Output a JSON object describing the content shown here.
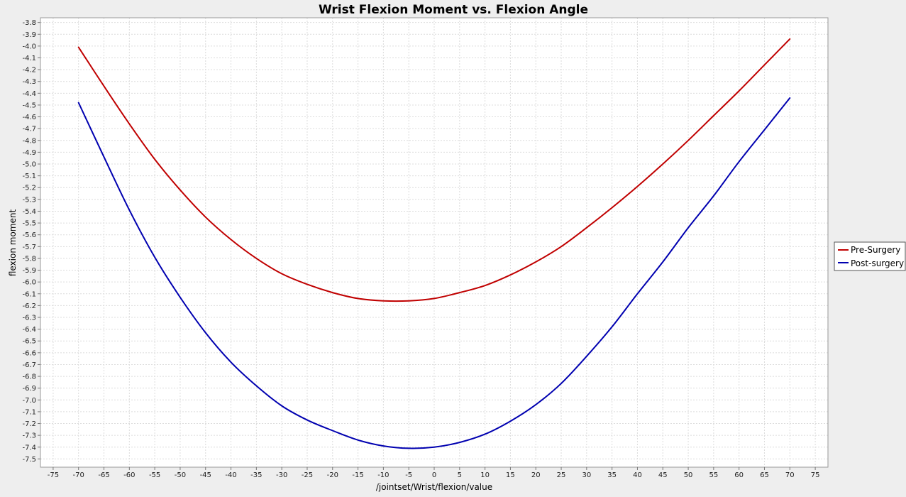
{
  "chart_data": {
    "type": "line",
    "title": "Wrist Flexion Moment vs. Flexion Angle",
    "xlabel": "/jointset/Wrist/flexion/value",
    "ylabel": "flexion moment",
    "xlim": [
      -77.5,
      77.5
    ],
    "ylim": [
      -7.57,
      -3.76
    ],
    "x_ticks": [
      -75,
      -70,
      -65,
      -60,
      -55,
      -50,
      -45,
      -40,
      -35,
      -30,
      -25,
      -20,
      -15,
      -10,
      -5,
      0,
      5,
      10,
      15,
      20,
      25,
      30,
      35,
      40,
      45,
      50,
      55,
      60,
      65,
      70,
      75
    ],
    "x_tick_labels": [
      "-75",
      "-70",
      "-65",
      "-60",
      "-55",
      "-50",
      "-45",
      "-40",
      "-35",
      "-30",
      "-25",
      "-20",
      "-15",
      "-10",
      "-5",
      "0",
      "5",
      "10",
      "15",
      "20",
      "25",
      "30",
      "35",
      "40",
      "45",
      "50",
      "55",
      "60",
      "65",
      "70",
      "75"
    ],
    "y_ticks": [
      -3.8,
      -3.9,
      -4.0,
      -4.1,
      -4.2,
      -4.3,
      -4.4,
      -4.5,
      -4.6,
      -4.7,
      -4.8,
      -4.9,
      -5.0,
      -5.1,
      -5.2,
      -5.3,
      -5.4,
      -5.5,
      -5.6,
      -5.7,
      -5.8,
      -5.9,
      -6.0,
      -6.1,
      -6.2,
      -6.3,
      -6.4,
      -6.5,
      -6.6,
      -6.7,
      -6.8,
      -6.9,
      -7.0,
      -7.1,
      -7.2,
      -7.3,
      -7.4,
      -7.5
    ],
    "y_tick_labels": [
      "-3.8",
      "-3.9",
      "-4.0",
      "-4.1",
      "-4.2",
      "-4.3",
      "-4.4",
      "-4.5",
      "-4.6",
      "-4.7",
      "-4.8",
      "-4.9",
      "-5.0",
      "-5.1",
      "-5.2",
      "-5.3",
      "-5.4",
      "-5.5",
      "-5.6",
      "-5.7",
      "-5.8",
      "-5.9",
      "-6.0",
      "-6.1",
      "-6.2",
      "-6.3",
      "-6.4",
      "-6.5",
      "-6.6",
      "-6.7",
      "-6.8",
      "-6.9",
      "-7.0",
      "-7.1",
      "-7.2",
      "-7.3",
      "-7.4",
      "-7.5"
    ],
    "grid": true,
    "legend_position": "right",
    "series": [
      {
        "name": "Pre-Surgery",
        "color": "#c00000",
        "x": [
          -70,
          -65,
          -60,
          -55,
          -50,
          -45,
          -40,
          -35,
          -30,
          -25,
          -20,
          -15,
          -10,
          -5,
          0,
          5,
          10,
          15,
          20,
          25,
          30,
          35,
          40,
          45,
          50,
          55,
          60,
          65,
          70
        ],
        "y": [
          -4.01,
          -4.34,
          -4.66,
          -4.96,
          -5.22,
          -5.45,
          -5.64,
          -5.8,
          -5.93,
          -6.02,
          -6.09,
          -6.14,
          -6.16,
          -6.16,
          -6.14,
          -6.09,
          -6.03,
          -5.94,
          -5.83,
          -5.7,
          -5.54,
          -5.37,
          -5.19,
          -5.0,
          -4.8,
          -4.59,
          -4.38,
          -4.16,
          -3.94
        ]
      },
      {
        "name": "Post-surgery",
        "color": "#0000b0",
        "x": [
          -70,
          -65,
          -60,
          -55,
          -50,
          -45,
          -40,
          -35,
          -30,
          -25,
          -20,
          -15,
          -10,
          -5,
          0,
          5,
          10,
          15,
          20,
          25,
          30,
          35,
          40,
          45,
          50,
          55,
          60,
          65,
          70
        ],
        "y": [
          -4.48,
          -4.94,
          -5.39,
          -5.79,
          -6.13,
          -6.43,
          -6.68,
          -6.88,
          -7.05,
          -7.17,
          -7.26,
          -7.34,
          -7.39,
          -7.41,
          -7.4,
          -7.36,
          -7.29,
          -7.18,
          -7.04,
          -6.86,
          -6.63,
          -6.38,
          -6.1,
          -5.83,
          -5.54,
          -5.27,
          -4.98,
          -4.71,
          -4.44
        ]
      }
    ]
  }
}
